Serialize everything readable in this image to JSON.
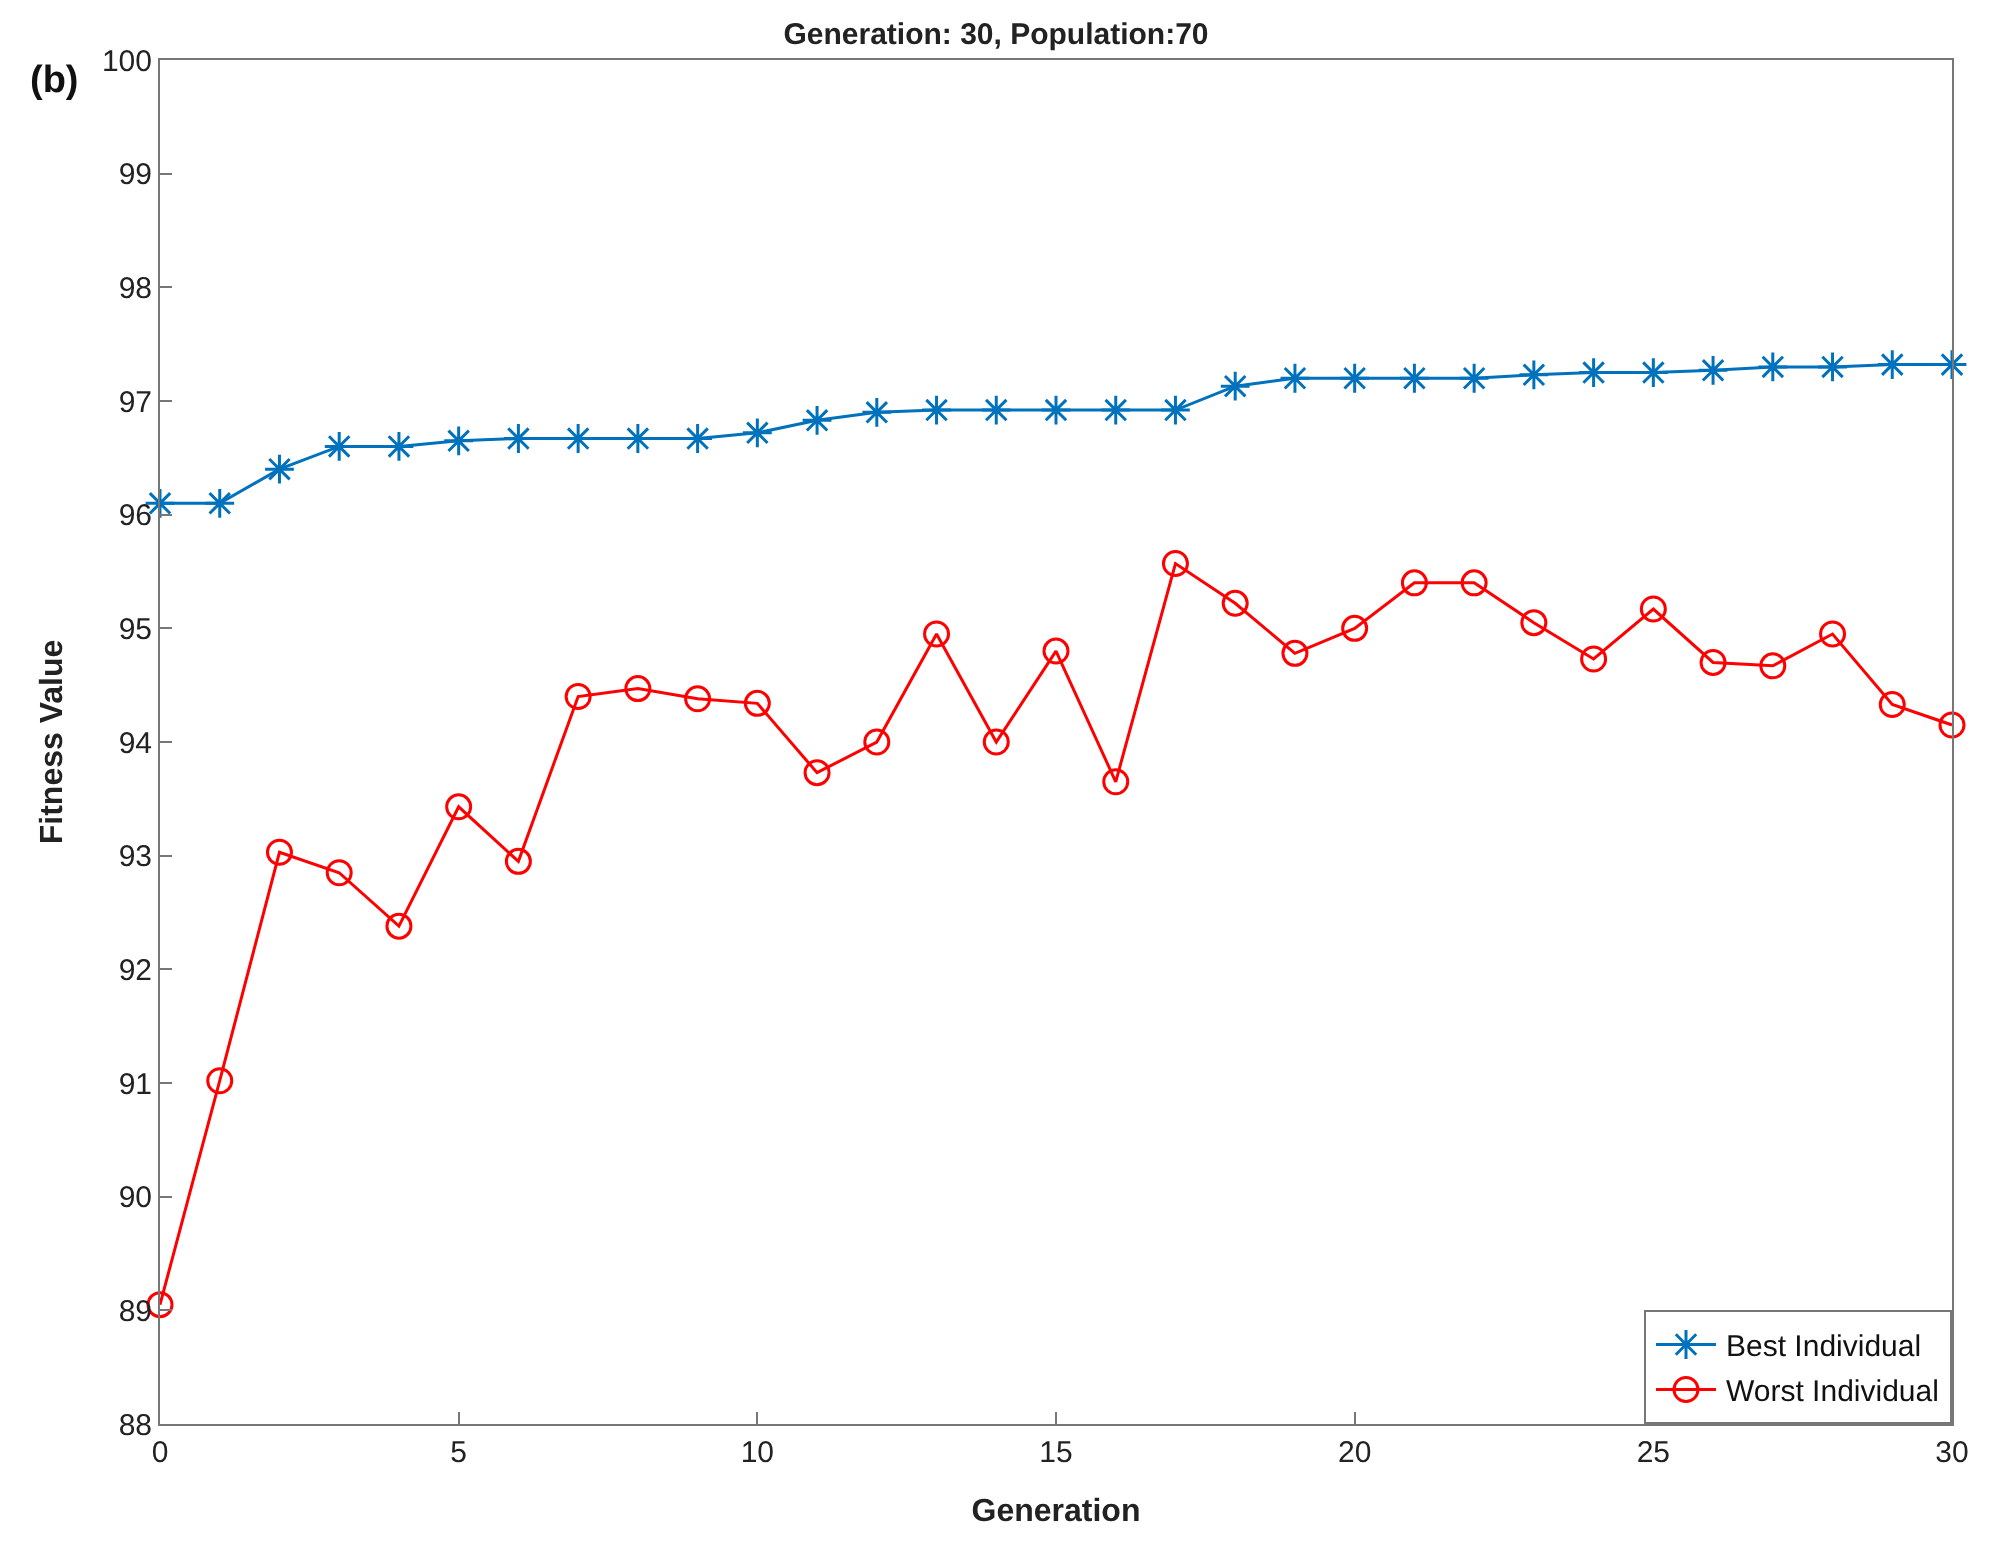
{
  "chart_data": {
    "type": "line",
    "title": "Generation: 30, Population:70",
    "xlabel": "Generation",
    "ylabel": "Fitness Value",
    "annotations": [
      "(b)"
    ],
    "x": [
      0,
      1,
      2,
      3,
      4,
      5,
      6,
      7,
      8,
      9,
      10,
      11,
      12,
      13,
      14,
      15,
      16,
      17,
      18,
      19,
      20,
      21,
      22,
      23,
      24,
      25,
      26,
      27,
      28,
      29,
      30
    ],
    "series": [
      {
        "name": "Best Individual",
        "color": "#0072bd",
        "marker": "cross",
        "values": [
          96.1,
          96.1,
          96.4,
          96.6,
          96.6,
          96.65,
          96.67,
          96.67,
          96.67,
          96.67,
          96.72,
          96.83,
          96.9,
          96.92,
          96.92,
          96.92,
          96.92,
          96.92,
          97.13,
          97.2,
          97.2,
          97.2,
          97.2,
          97.23,
          97.25,
          97.25,
          97.27,
          97.3,
          97.3,
          97.32,
          97.32
        ]
      },
      {
        "name": "Worst Individual",
        "color": "#ff0000",
        "marker": "circle",
        "values": [
          89.05,
          91.02,
          93.03,
          92.85,
          92.38,
          93.43,
          92.95,
          94.4,
          94.47,
          94.38,
          94.34,
          93.73,
          94.0,
          94.95,
          94.0,
          94.8,
          93.65,
          95.57,
          95.22,
          94.78,
          95.0,
          95.4,
          95.4,
          95.05,
          94.73,
          95.17,
          94.7,
          94.67,
          94.95,
          94.33,
          94.15
        ]
      }
    ],
    "xlim": [
      0,
      30
    ],
    "xticks": [
      0,
      5,
      10,
      15,
      20,
      25,
      30
    ],
    "ylim": [
      88,
      100
    ],
    "yticks": [
      88,
      89,
      90,
      91,
      92,
      93,
      94,
      95,
      96,
      97,
      98,
      99,
      100
    ],
    "grid": false,
    "legend": "bottom right",
    "line_style": "solid"
  }
}
